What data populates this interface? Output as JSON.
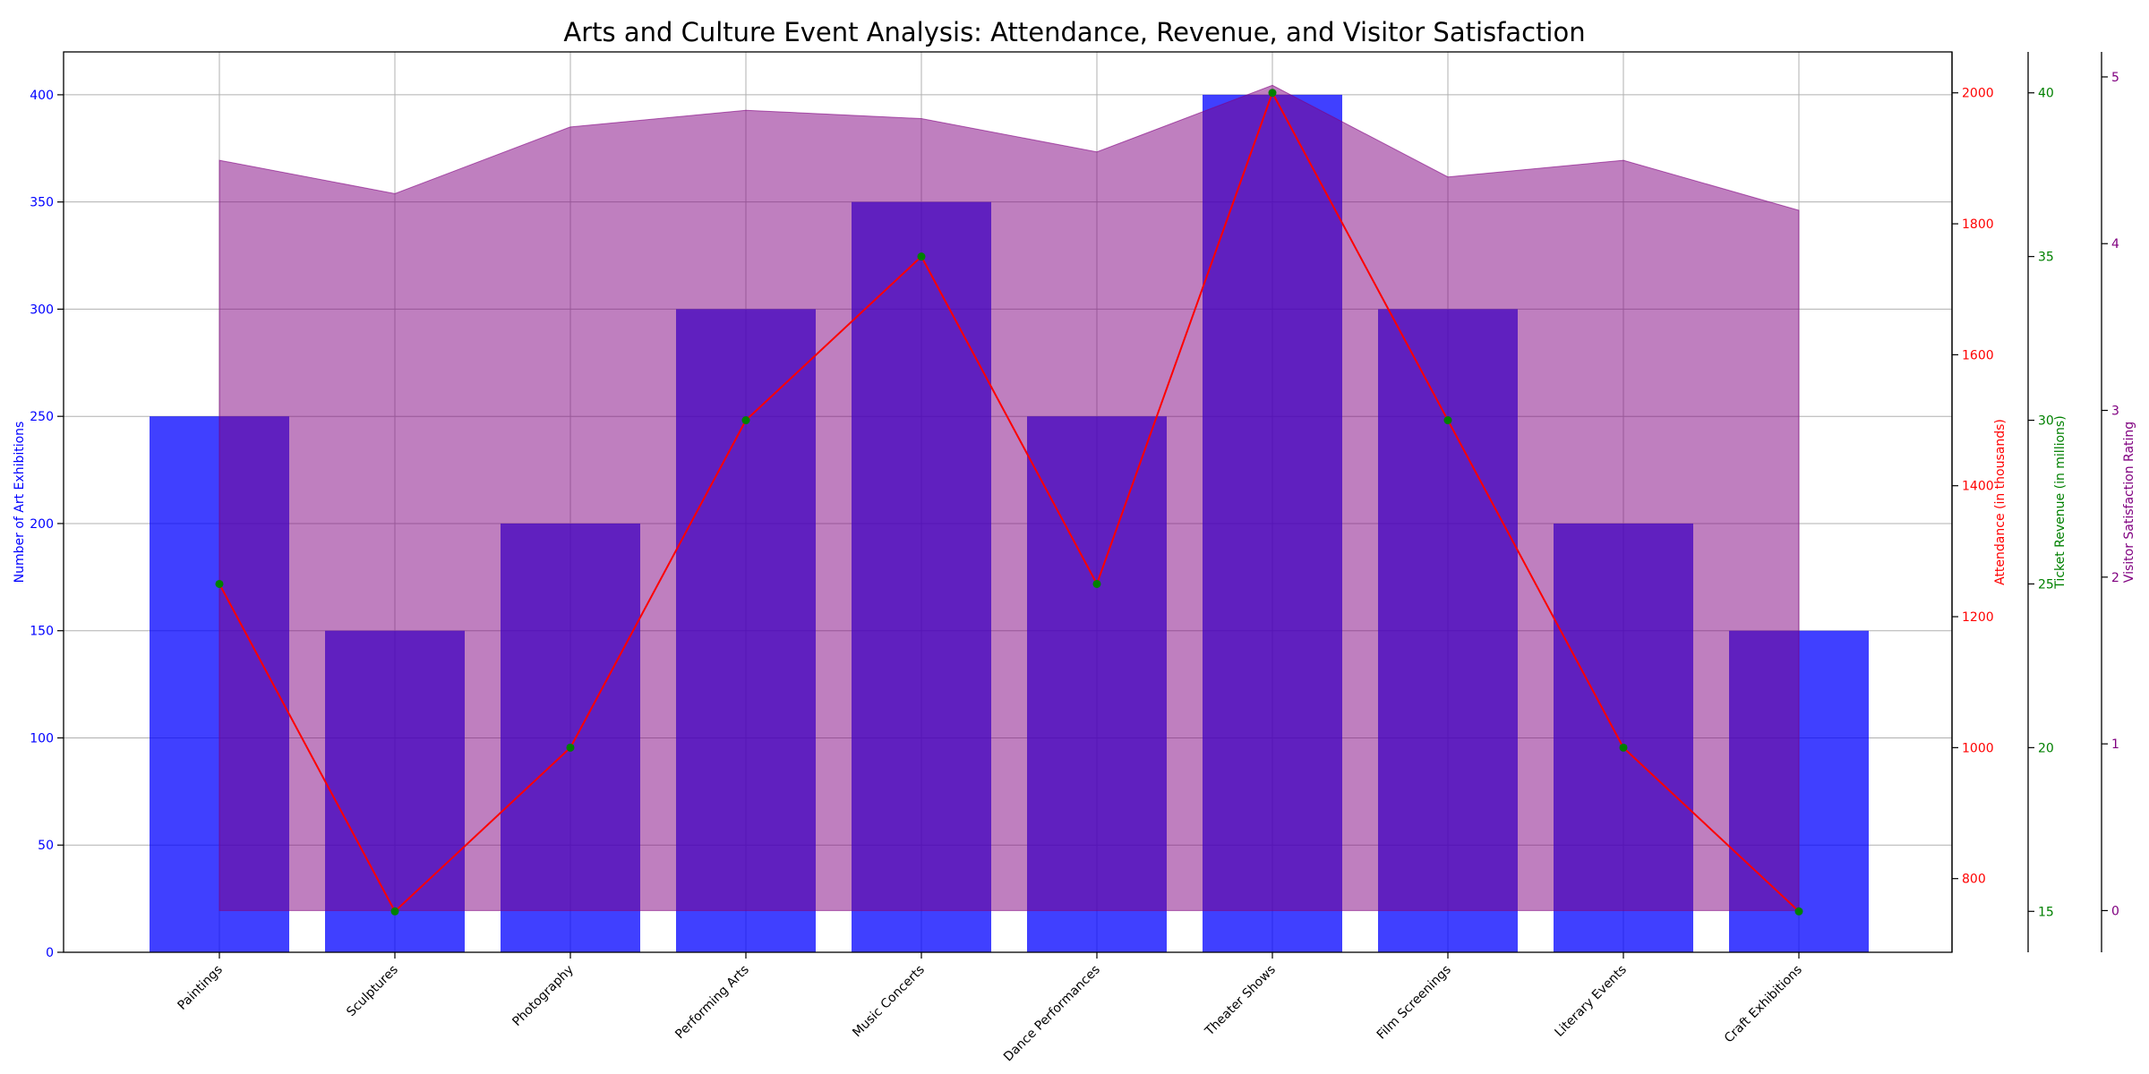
{
  "chart_data": {
    "type": "bar",
    "title": "Arts and Culture Event Analysis: Attendance, Revenue, and Visitor Satisfaction",
    "categories": [
      "Paintings",
      "Sculptures",
      "Photography",
      "Performing Arts",
      "Music Concerts",
      "Dance Performances",
      "Theater Shows",
      "Film Screenings",
      "Literary Events",
      "Craft Exhibitions"
    ],
    "grid": true,
    "series": [
      {
        "name": "Number of Art Exhibitions",
        "kind": "bar",
        "axis": "left",
        "color": "#0000ff",
        "values": [
          250,
          150,
          200,
          300,
          350,
          250,
          400,
          300,
          200,
          150
        ]
      },
      {
        "name": "Attendance (in thousands)",
        "kind": "line",
        "axis": "right1",
        "color": "#ff0000",
        "values": [
          1250,
          750,
          1000,
          1500,
          1750,
          1250,
          2000,
          1500,
          1000,
          750
        ]
      },
      {
        "name": "Ticket Revenue (in millions)",
        "kind": "marker",
        "axis": "right2",
        "color": "#008000",
        "values": [
          25,
          15,
          20,
          30,
          35,
          25,
          40,
          30,
          20,
          15
        ]
      },
      {
        "name": "Visitor Satisfaction Rating",
        "kind": "area",
        "axis": "right3",
        "color": "#800080",
        "values": [
          4.5,
          4.3,
          4.7,
          4.8,
          4.75,
          4.55,
          4.95,
          4.4,
          4.5,
          4.2
        ]
      }
    ],
    "axes": {
      "left": {
        "label": "Number of Art Exhibitions",
        "color": "#0000ff",
        "range": [
          0,
          420
        ],
        "ticks": [
          0,
          50,
          100,
          150,
          200,
          250,
          300,
          350,
          400
        ]
      },
      "right1": {
        "label": "Attendance (in thousands)",
        "color": "#ff0000",
        "range": [
          687.5,
          2062.5
        ],
        "ticks": [
          800,
          1000,
          1200,
          1400,
          1600,
          1800,
          2000
        ]
      },
      "right2": {
        "label": "Ticket Revenue (in millions)",
        "color": "#008000",
        "range": [
          13.75,
          41.25
        ],
        "ticks": [
          15,
          20,
          25,
          30,
          35,
          40
        ]
      },
      "right3": {
        "label": "Visitor Satisfaction Rating",
        "color": "#800080",
        "range": [
          -0.25,
          5.15
        ],
        "ticks": [
          0,
          1,
          2,
          3,
          4,
          5
        ]
      }
    }
  }
}
